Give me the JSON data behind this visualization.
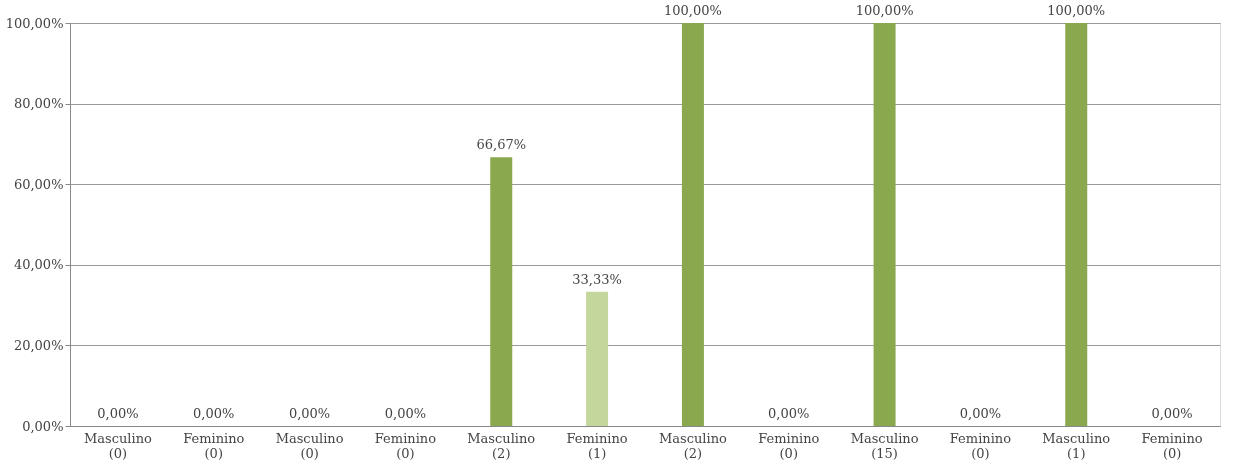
{
  "chart_data": {
    "type": "bar",
    "categories": [
      "Masculino (0)",
      "Feminino (0)",
      "Masculino (0)",
      "Feminino (0)",
      "Masculino (2)",
      "Feminino (1)",
      "Masculino (2)",
      "Feminino (0)",
      "Masculino (15)",
      "Feminino (0)",
      "Masculino (1)",
      "Feminino (0)"
    ],
    "values": [
      0,
      0,
      0,
      0,
      66.67,
      33.33,
      100,
      0,
      100,
      0,
      100,
      0
    ],
    "colors": [
      "#8aa84e",
      "#c3d69b",
      "#8aa84e",
      "#c3d69b",
      "#8aa84e",
      "#c3d69b",
      "#8aa84e",
      "#c3d69b",
      "#8aa84e",
      "#c3d69b",
      "#8aa84e",
      "#c3d69b"
    ],
    "value_labels": [
      "0,00%",
      "0,00%",
      "0,00%",
      "0,00%",
      "66,67%",
      "33,33%",
      "100,00%",
      "0,00%",
      "100,00%",
      "0,00%",
      "100,00%",
      "0,00%"
    ],
    "ylim": [
      0,
      100
    ],
    "yticks": [
      {
        "value": 0,
        "label": "0,00%"
      },
      {
        "value": 20,
        "label": "20,00%"
      },
      {
        "value": 40,
        "label": "40,00%"
      },
      {
        "value": 60,
        "label": "60,00%"
      },
      {
        "value": 80,
        "label": "80,00%"
      },
      {
        "value": 100,
        "label": "100,00%"
      }
    ],
    "grid": "y"
  }
}
